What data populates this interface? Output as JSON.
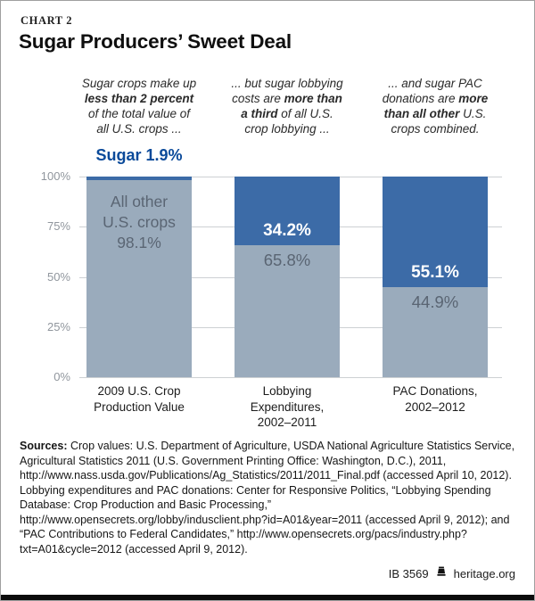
{
  "page": {
    "kicker": "CHART 2",
    "title": "Sugar Producers’ Sweet Deal"
  },
  "annotations": [
    {
      "segments": [
        {
          "t": "Sugar crops make up\n"
        },
        {
          "t": "less than 2 percent",
          "b": true
        },
        {
          "t": "\nof the total value of\nall U.S. crops ..."
        }
      ]
    },
    {
      "segments": [
        {
          "t": "... but sugar lobbying\ncosts are "
        },
        {
          "t": "more than\na third",
          "b": true
        },
        {
          "t": " of all U.S.\ncrop lobbying ..."
        }
      ]
    },
    {
      "segments": [
        {
          "t": "... and sugar PAC\ndonations are "
        },
        {
          "t": "more\nthan all other",
          "b": true
        },
        {
          "t": " U.S.\ncrops combined."
        }
      ]
    }
  ],
  "sugar_callout": "Sugar 1.9%",
  "bars": [
    {
      "blue_label": "",
      "gray_label": "All other\nU.S. crops\n98.1%",
      "axis_label": "2009 U.S. Crop\nProduction Value"
    },
    {
      "blue_label": "34.2%",
      "gray_label": "65.8%",
      "axis_label": "Lobbying\nExpenditures,\n2002–2011"
    },
    {
      "blue_label": "55.1%",
      "gray_label": "44.9%",
      "axis_label": "PAC Donations,\n2002–2012"
    }
  ],
  "chart_data": {
    "type": "bar",
    "stacked": true,
    "title": "Sugar Producers’ Sweet Deal",
    "categories": [
      "2009 U.S. Crop Production Value",
      "Lobbying Expenditures, 2002–2011",
      "PAC Donations, 2002–2012"
    ],
    "series": [
      {
        "name": "Sugar",
        "values": [
          1.9,
          34.2,
          55.1
        ],
        "color": "#3c6ba7"
      },
      {
        "name": "All other U.S. crops",
        "values": [
          98.1,
          65.8,
          44.9
        ],
        "color": "#9aabbc"
      }
    ],
    "ylabel": "",
    "ylim": [
      0,
      100
    ],
    "yticks": [
      "100%",
      "75%",
      "50%",
      "25%",
      "0%"
    ],
    "grid": true,
    "legend": "none",
    "annotations": [
      "Sugar crops make up less than 2 percent of the total value of all U.S. crops ...",
      "... but sugar lobbying costs are more than a third of all U.S. crop lobbying ...",
      "... and sugar PAC donations are more than all other U.S. crops combined.",
      "Sugar 1.9%",
      "All other U.S. crops 98.1%"
    ]
  },
  "sources": {
    "segments": [
      {
        "t": "Sources: ",
        "b": true
      },
      {
        "t": "Crop values: U.S. Department of Agriculture, USDA National Agriculture Statistics Service, Agricultural Statistics 2011 (U.S. Government Printing Office: Washington, D.C.), 2011, http://www.nass.usda.gov/Publications/Ag_Statistics/2011/2011_Final.pdf (accessed April 10, 2012). Lobbying expenditures and PAC donations: Center for Responsive Politics, “Lobbying Spending Database: Crop Production and Basic Processing,” http://www.opensecrets.org/lobby/indusclient.php?id=A01&year=2011 (accessed April 9, 2012); and “PAC Contributions to Federal Candidates,” http://www.opensecrets.org/pacs/industry.php?txt=A01&cycle=2012 (accessed April 9, 2012)."
      }
    ]
  },
  "footer": {
    "report_id": "IB 3569",
    "site": "heritage.org",
    "logo": "liberty-bell-icon"
  },
  "colors": {
    "sugar_blue": "#3c6ba7",
    "other_gray": "#9aabbc",
    "callout_blue": "#0b4a9a",
    "axis_gray": "#90969d",
    "gridline": "#cdd0d3"
  }
}
